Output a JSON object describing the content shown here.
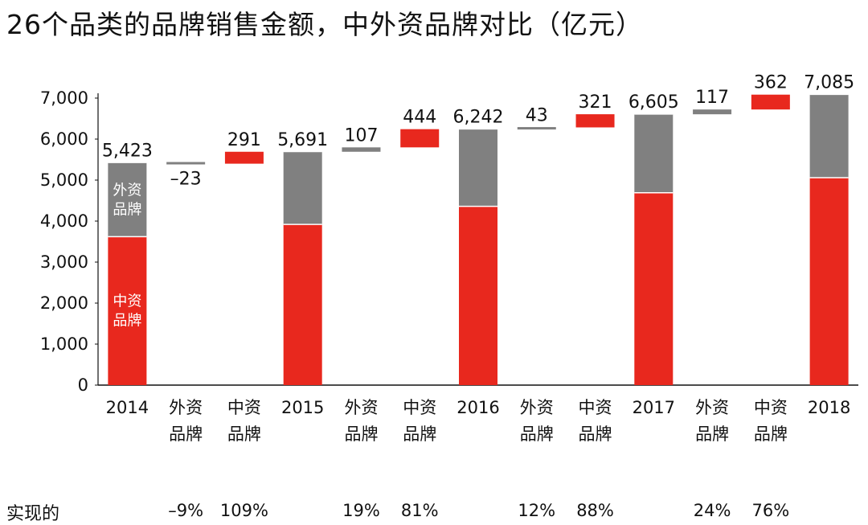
{
  "title": "26个品类的品牌销售金额，中外资品牌对比（亿元）",
  "chart_data": {
    "type": "bar",
    "subtype": "waterfall",
    "title": "26个品类的品牌销售金额，中外资品牌对比（亿元）",
    "ylim": [
      0,
      7000
    ],
    "yticks": [
      "0",
      "1,000",
      "2,000",
      "3,000",
      "4,000",
      "5,000",
      "6,000",
      "7,000"
    ],
    "grid": false,
    "colors": {
      "domestic": "#e8281e",
      "foreign": "#808080"
    },
    "in_bar_labels": {
      "foreign": [
        "外资",
        "品牌"
      ],
      "domestic": [
        "中资",
        "品牌"
      ]
    },
    "categories": [
      [
        "2014"
      ],
      [
        "外资",
        "品牌"
      ],
      [
        "中资",
        "品牌"
      ],
      [
        "2015"
      ],
      [
        "外资",
        "品牌"
      ],
      [
        "中资",
        "品牌"
      ],
      [
        "2016"
      ],
      [
        "外资",
        "品牌"
      ],
      [
        "中资",
        "品牌"
      ],
      [
        "2017"
      ],
      [
        "外资",
        "品牌"
      ],
      [
        "中资",
        "品牌"
      ],
      [
        "2018"
      ]
    ],
    "bars": [
      {
        "kind": "total",
        "total": 5423,
        "domestic": 3620,
        "label": "5,423"
      },
      {
        "kind": "foreign_change",
        "value": -23,
        "label": "–23"
      },
      {
        "kind": "domestic_change",
        "value": 291,
        "label": "291"
      },
      {
        "kind": "total",
        "total": 5691,
        "domestic": 3920,
        "label": "5,691"
      },
      {
        "kind": "foreign_change",
        "value": 107,
        "label": "107"
      },
      {
        "kind": "domestic_change",
        "value": 444,
        "label": "444"
      },
      {
        "kind": "total",
        "total": 6242,
        "domestic": 4360,
        "label": "6,242"
      },
      {
        "kind": "foreign_change",
        "value": 43,
        "label": "43"
      },
      {
        "kind": "domestic_change",
        "value": 321,
        "label": "321"
      },
      {
        "kind": "total",
        "total": 6605,
        "domestic": 4690,
        "label": "6,605"
      },
      {
        "kind": "foreign_change",
        "value": 117,
        "label": "117"
      },
      {
        "kind": "domestic_change",
        "value": 362,
        "label": "362"
      },
      {
        "kind": "total",
        "total": 7085,
        "domestic": 5060,
        "label": "7,085"
      }
    ],
    "contribution_row": {
      "label": "实现的",
      "values": [
        "",
        "–9%",
        "109%",
        "",
        "19%",
        "81%",
        "",
        "12%",
        "88%",
        "",
        "24%",
        "76%",
        ""
      ]
    }
  }
}
